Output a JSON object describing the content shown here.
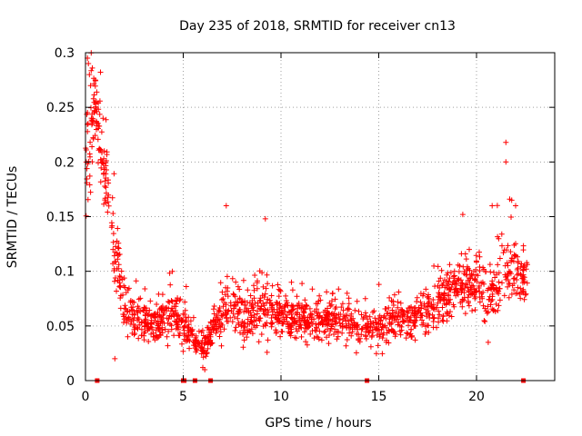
{
  "colors": {
    "series": "#ff0000",
    "grid": "#a0a0a0",
    "axis": "#000000",
    "background": "#ffffff"
  },
  "chart_data": {
    "type": "scatter",
    "title": "Day 235 of 2018, SRMTID for receiver cn13",
    "xlabel": "GPS time / hours",
    "ylabel": "SRMTID / TECUs",
    "xlim": [
      0,
      24
    ],
    "ylim": [
      0,
      0.3
    ],
    "grid": true,
    "marker": "plus",
    "x_ticks": [
      0,
      5,
      10,
      15,
      20
    ],
    "x_tick_labels": [
      "0",
      "5",
      "10",
      "15",
      "20"
    ],
    "y_ticks": [
      0,
      0.05,
      0.1,
      0.15,
      0.2,
      0.25,
      0.3
    ],
    "y_tick_labels": [
      "0",
      "0.05",
      "0.1",
      "0.15",
      "0.2",
      "0.25",
      "0.3"
    ],
    "series": [
      {
        "name": "SRMTID",
        "trend_note": "approximate envelope of the dense point cloud, sampled and jittered at draw time",
        "envelope": [
          {
            "x": 0.0,
            "mid": 0.19,
            "spread": 0.045
          },
          {
            "x": 0.25,
            "mid": 0.22,
            "spread": 0.05
          },
          {
            "x": 0.5,
            "mid": 0.25,
            "spread": 0.04
          },
          {
            "x": 0.9,
            "mid": 0.2,
            "spread": 0.04
          },
          {
            "x": 1.3,
            "mid": 0.15,
            "spread": 0.04
          },
          {
            "x": 1.6,
            "mid": 0.11,
            "spread": 0.035
          },
          {
            "x": 2.0,
            "mid": 0.07,
            "spread": 0.03
          },
          {
            "x": 2.5,
            "mid": 0.055,
            "spread": 0.02
          },
          {
            "x": 3.5,
            "mid": 0.055,
            "spread": 0.02
          },
          {
            "x": 4.5,
            "mid": 0.06,
            "spread": 0.022
          },
          {
            "x": 5.0,
            "mid": 0.05,
            "spread": 0.02
          },
          {
            "x": 5.5,
            "mid": 0.04,
            "spread": 0.015
          },
          {
            "x": 6.0,
            "mid": 0.03,
            "spread": 0.012
          },
          {
            "x": 6.5,
            "mid": 0.045,
            "spread": 0.018
          },
          {
            "x": 7.2,
            "mid": 0.07,
            "spread": 0.03
          },
          {
            "x": 8.0,
            "mid": 0.06,
            "spread": 0.022
          },
          {
            "x": 9.0,
            "mid": 0.065,
            "spread": 0.028
          },
          {
            "x": 10.0,
            "mid": 0.06,
            "spread": 0.02
          },
          {
            "x": 11.0,
            "mid": 0.055,
            "spread": 0.018
          },
          {
            "x": 12.0,
            "mid": 0.055,
            "spread": 0.018
          },
          {
            "x": 13.0,
            "mid": 0.055,
            "spread": 0.018
          },
          {
            "x": 14.0,
            "mid": 0.05,
            "spread": 0.018
          },
          {
            "x": 15.0,
            "mid": 0.05,
            "spread": 0.02
          },
          {
            "x": 16.0,
            "mid": 0.055,
            "spread": 0.022
          },
          {
            "x": 17.0,
            "mid": 0.06,
            "spread": 0.022
          },
          {
            "x": 18.0,
            "mid": 0.07,
            "spread": 0.025
          },
          {
            "x": 19.0,
            "mid": 0.085,
            "spread": 0.025
          },
          {
            "x": 20.0,
            "mid": 0.09,
            "spread": 0.03
          },
          {
            "x": 20.6,
            "mid": 0.07,
            "spread": 0.03
          },
          {
            "x": 21.3,
            "mid": 0.1,
            "spread": 0.035
          },
          {
            "x": 22.0,
            "mid": 0.1,
            "spread": 0.035
          },
          {
            "x": 22.6,
            "mid": 0.09,
            "spread": 0.025
          }
        ],
        "spikes": [
          {
            "x": 0.1,
            "y": 0.295
          },
          {
            "x": 0.15,
            "y": 0.29
          },
          {
            "x": 0.2,
            "y": 0.28
          },
          {
            "x": 0.5,
            "y": 0.275
          },
          {
            "x": 0.9,
            "y": 0.24
          },
          {
            "x": 7.2,
            "y": 0.16
          },
          {
            "x": 9.2,
            "y": 0.148
          },
          {
            "x": 19.3,
            "y": 0.152
          },
          {
            "x": 20.8,
            "y": 0.16
          },
          {
            "x": 21.5,
            "y": 0.2
          },
          {
            "x": 21.5,
            "y": 0.218
          },
          {
            "x": 21.8,
            "y": 0.165
          },
          {
            "x": 22.0,
            "y": 0.16
          },
          {
            "x": 1.5,
            "y": 0.02
          },
          {
            "x": 6.0,
            "y": 0.012
          },
          {
            "x": 6.1,
            "y": 0.01
          },
          {
            "x": 20.6,
            "y": 0.035
          }
        ],
        "x_start": 0.0,
        "x_end": 22.6,
        "gaps_at_zero": [
          0.6,
          5.0,
          5.05,
          5.6,
          6.4,
          14.4,
          22.4
        ]
      }
    ]
  }
}
